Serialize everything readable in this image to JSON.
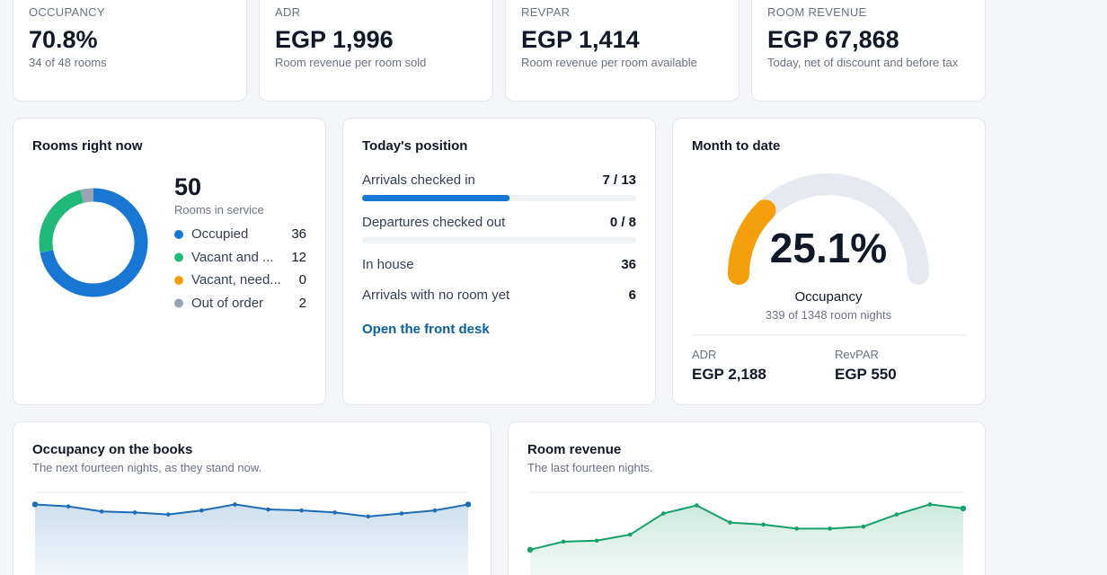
{
  "kpis": [
    {
      "label": "OCCUPANCY",
      "value": "70.8%",
      "note": "34 of 48 rooms"
    },
    {
      "label": "ADR",
      "value": "EGP 1,996",
      "note": "Room revenue per room sold"
    },
    {
      "label": "REVPAR",
      "value": "EGP 1,414",
      "note": "Room revenue per room available"
    },
    {
      "label": "ROOM REVENUE",
      "value": "EGP 67,868",
      "note": "Today, net of discount and before tax"
    }
  ],
  "rooms_now": {
    "title": "Rooms right now",
    "total": 50,
    "total_label": "Rooms in service",
    "items": [
      {
        "name": "Occupied",
        "value": 36,
        "color": "#1877d2"
      },
      {
        "name": "Vacant and ...",
        "value": 12,
        "color": "#20b97a"
      },
      {
        "name": "Vacant, need...",
        "value": 0,
        "color": "#f59e0b"
      },
      {
        "name": "Out of order",
        "value": 2,
        "color": "#9aa3b1"
      }
    ]
  },
  "position": {
    "title": "Today's position",
    "bars": [
      {
        "name": "Arrivals checked in",
        "label": "7 / 13",
        "done": 7,
        "total": 13
      },
      {
        "name": "Departures checked out",
        "label": "0 / 8",
        "done": 0,
        "total": 8
      }
    ],
    "rows": [
      {
        "name": "In house",
        "value": 36
      },
      {
        "name": "Arrivals with no room yet",
        "value": 6
      }
    ],
    "link": "Open the front desk",
    "color": "#1877d2"
  },
  "month": {
    "title": "Month to date",
    "value": 25.1,
    "label": "25.1%",
    "range": [
      0,
      100
    ],
    "color": "#f59e0b",
    "caption": "Occupancy",
    "note": "339 of 1348 room nights",
    "stats": [
      {
        "label": "ADR",
        "value": "EGP 2,188"
      },
      {
        "label": "RevPAR",
        "value": "EGP 550"
      }
    ]
  },
  "charts": [
    {
      "type": "line",
      "title": "Occupancy on the books",
      "subtitle": "The next fourteen nights, as they stand now.",
      "values": [
        88,
        86,
        81,
        80,
        78,
        82,
        88,
        83,
        82,
        80,
        76,
        79,
        82,
        88
      ],
      "ylim": [
        0,
        100
      ],
      "color": "#1c6db5"
    },
    {
      "type": "line",
      "title": "Room revenue",
      "subtitle": "The last fourteen nights.",
      "values": [
        43,
        51,
        52,
        58,
        79,
        87,
        70,
        68,
        64,
        64,
        66,
        78,
        88,
        84
      ],
      "ylim": [
        0,
        100
      ],
      "color": "#16a06a"
    }
  ]
}
